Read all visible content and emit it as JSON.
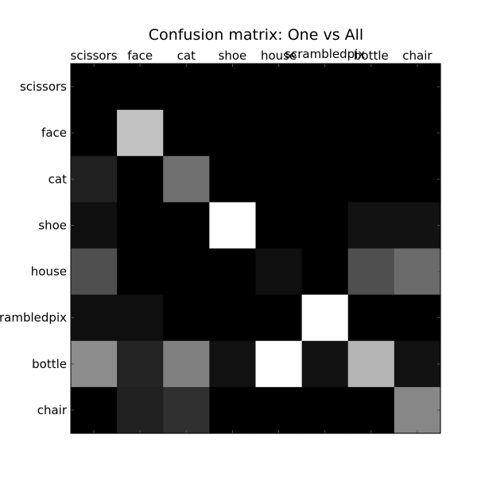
{
  "chart_data": {
    "type": "heatmap",
    "title": "Confusion matrix: One vs All",
    "xlabel": "",
    "ylabel": "",
    "colormap": "gray",
    "grid": false,
    "x_tick_position": "top",
    "col_labels": [
      "scissors",
      "face",
      "cat",
      "shoe",
      "house",
      "scrambledpix",
      "bottle",
      "chair"
    ],
    "row_labels": [
      "scissors",
      "face",
      "cat",
      "shoe",
      "house",
      "scrambledpix",
      "bottle",
      "chair"
    ],
    "value_range": [
      0,
      1
    ],
    "values": [
      [
        0.0,
        0.0,
        0.0,
        0.0,
        0.0,
        0.0,
        0.0,
        0.0
      ],
      [
        0.0,
        0.76,
        0.0,
        0.0,
        0.0,
        0.0,
        0.0,
        0.0
      ],
      [
        0.13,
        0.0,
        0.44,
        0.0,
        0.0,
        0.0,
        0.0,
        0.0
      ],
      [
        0.06,
        0.0,
        0.0,
        1.0,
        0.0,
        0.0,
        0.07,
        0.07
      ],
      [
        0.31,
        0.0,
        0.0,
        0.0,
        0.06,
        0.0,
        0.31,
        0.42
      ],
      [
        0.06,
        0.06,
        0.0,
        0.0,
        0.0,
        1.0,
        0.0,
        0.0
      ],
      [
        0.55,
        0.14,
        0.5,
        0.07,
        1.0,
        0.07,
        0.71,
        0.07
      ],
      [
        0.0,
        0.13,
        0.19,
        0.0,
        0.0,
        0.0,
        0.0,
        0.53
      ]
    ]
  }
}
